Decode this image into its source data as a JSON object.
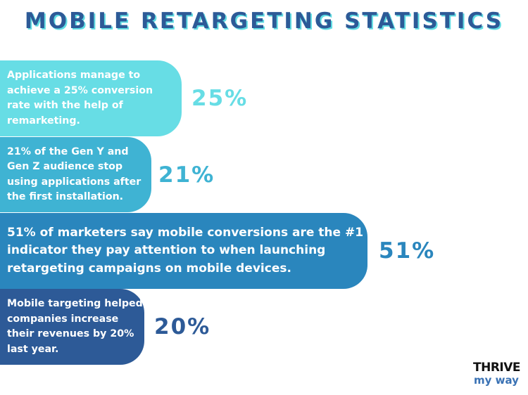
{
  "title": "MOBILE RETARGETING STATISTICS",
  "chart_data": {
    "type": "bar",
    "orientation": "horizontal",
    "unit": "%",
    "categories": [
      "Applications manage to achieve a 25% conversion rate with the help of remarketing.",
      "21% of the Gen Y and Gen Z audience stop using applications after the first installation.",
      "51% of marketers say mobile conversions are the #1 indicator they pay attention to when launching retargeting campaigns on mobile devices.",
      "Mobile targeting helped companies increase their revenues by 20% last year."
    ],
    "values": [
      25,
      21,
      51,
      20
    ],
    "value_labels": [
      "25%",
      "21%",
      "51%",
      "20%"
    ],
    "text_lines": [
      [
        "Applications manage to",
        "achieve a 25% conversion",
        "rate with the help of",
        "remarketing."
      ],
      [
        "21% of the Gen Y and",
        "Gen Z audience stop",
        "using applications after",
        "the first installation."
      ],
      [
        "51% of marketers say mobile conversions are the #1",
        "indicator they pay attention to when launching",
        "retargeting campaigns on mobile devices."
      ],
      [
        "Mobile targeting helped",
        "companies increase",
        "their revenues by 20%",
        "last year."
      ]
    ],
    "bar_colors": [
      "#67dde5",
      "#3fb3d3",
      "#2a86bd",
      "#2d5a97"
    ],
    "value_colors": [
      "#67dde5",
      "#3fb3d3",
      "#2a86bd",
      "#2d5a97"
    ]
  },
  "brand": {
    "logo_top": "THRIVE",
    "logo_bottom": "my way"
  },
  "colors": {
    "title": "#2d5a97",
    "title_shadow": "#60dde3"
  }
}
